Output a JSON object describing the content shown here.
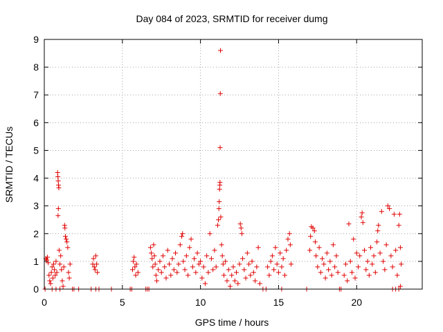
{
  "chart_data": {
    "type": "scatter",
    "title": "Day 084 of 2023, SRMTID for receiver dumg",
    "xlabel": "GPS time / hours",
    "ylabel": "SRMTID / TECUs",
    "xlim": [
      0,
      24.2
    ],
    "ylim": [
      0,
      9
    ],
    "xticks": [
      0,
      5,
      10,
      15,
      20
    ],
    "xtick_labels": [
      "0",
      "5",
      "10",
      "15",
      "20"
    ],
    "yticks": [
      0,
      1,
      2,
      3,
      4,
      5,
      6,
      7,
      8,
      9
    ],
    "ytick_labels": [
      "0",
      "1",
      "2",
      "3",
      "4",
      "5",
      "6",
      "7",
      "8",
      "9"
    ],
    "grid": true,
    "marker": "plus",
    "color": "#e00000",
    "series": [
      {
        "name": "SRMTID",
        "points": [
          [
            0.1,
            1.1
          ],
          [
            0.15,
            1.05
          ],
          [
            0.2,
            1.15
          ],
          [
            0.25,
            0.95
          ],
          [
            0.3,
            0.5
          ],
          [
            0.35,
            0.3
          ],
          [
            0.4,
            0.2
          ],
          [
            0.45,
            0.6
          ],
          [
            0.5,
            0.8
          ],
          [
            0.55,
            0.4
          ],
          [
            0.6,
            0.9
          ],
          [
            0.65,
            0.7
          ],
          [
            0.7,
            0.5
          ],
          [
            0.75,
            1.0
          ],
          [
            0.8,
            0.6
          ],
          [
            0.85,
            4.2
          ],
          [
            0.87,
            4.05
          ],
          [
            0.89,
            3.9
          ],
          [
            0.91,
            3.75
          ],
          [
            0.93,
            3.65
          ],
          [
            0.9,
            2.9
          ],
          [
            0.88,
            2.65
          ],
          [
            0.95,
            1.4
          ],
          [
            1.0,
            0.9
          ],
          [
            1.05,
            1.2
          ],
          [
            1.1,
            0.7
          ],
          [
            1.15,
            0.3
          ],
          [
            1.2,
            0.1
          ],
          [
            1.25,
            0.8
          ],
          [
            1.3,
            2.3
          ],
          [
            1.32,
            2.2
          ],
          [
            1.35,
            1.9
          ],
          [
            1.4,
            1.8
          ],
          [
            1.45,
            1.7
          ],
          [
            1.5,
            1.5
          ],
          [
            1.55,
            0.6
          ],
          [
            1.6,
            0.4
          ],
          [
            1.65,
            0.9
          ],
          [
            0.05,
            0.0
          ],
          [
            0.5,
            0.0
          ],
          [
            0.75,
            0.0
          ],
          [
            1.0,
            0.0
          ],
          [
            1.8,
            0.0
          ],
          [
            1.9,
            0.0
          ],
          [
            2.2,
            0.0
          ],
          [
            3.0,
            0.0
          ],
          [
            3.1,
            0.9
          ],
          [
            3.15,
            1.1
          ],
          [
            3.2,
            0.8
          ],
          [
            3.25,
            0.7
          ],
          [
            3.3,
            1.2
          ],
          [
            3.35,
            0.9
          ],
          [
            3.4,
            0.6
          ],
          [
            3.3,
            0.0
          ],
          [
            3.5,
            0.0
          ],
          [
            4.3,
            0.0
          ],
          [
            5.5,
            0.0
          ],
          [
            5.6,
            0.0
          ],
          [
            5.65,
            0.7
          ],
          [
            5.7,
            1.0
          ],
          [
            5.75,
            1.15
          ],
          [
            5.8,
            0.8
          ],
          [
            5.85,
            0.5
          ],
          [
            5.9,
            0.9
          ],
          [
            6.0,
            0.6
          ],
          [
            6.5,
            0.0
          ],
          [
            6.6,
            0.0
          ],
          [
            6.7,
            0.0
          ],
          [
            6.8,
            1.5
          ],
          [
            6.85,
            1.3
          ],
          [
            6.9,
            1.1
          ],
          [
            6.95,
            0.8
          ],
          [
            7.0,
            1.6
          ],
          [
            7.05,
            1.2
          ],
          [
            7.1,
            0.9
          ],
          [
            7.15,
            0.5
          ],
          [
            7.2,
            0.3
          ],
          [
            7.3,
            0.7
          ],
          [
            7.4,
            1.0
          ],
          [
            7.5,
            0.6
          ],
          [
            7.6,
            1.2
          ],
          [
            7.7,
            0.8
          ],
          [
            7.8,
            0.4
          ],
          [
            7.9,
            1.4
          ],
          [
            8.0,
            0.9
          ],
          [
            8.1,
            0.5
          ],
          [
            8.2,
            1.1
          ],
          [
            8.3,
            0.7
          ],
          [
            8.4,
            1.3
          ],
          [
            8.5,
            0.6
          ],
          [
            8.6,
            0.9
          ],
          [
            8.7,
            1.6
          ],
          [
            8.8,
            1.9
          ],
          [
            8.85,
            2.0
          ],
          [
            8.9,
            1.0
          ],
          [
            9.0,
            0.7
          ],
          [
            9.1,
            1.2
          ],
          [
            9.2,
            0.5
          ],
          [
            9.3,
            1.5
          ],
          [
            9.4,
            1.8
          ],
          [
            9.5,
            0.8
          ],
          [
            9.6,
            1.1
          ],
          [
            9.7,
            0.6
          ],
          [
            9.8,
            1.3
          ],
          [
            9.9,
            0.9
          ],
          [
            10.0,
            1.0
          ],
          [
            10.1,
            0.4
          ],
          [
            10.2,
            0.8
          ],
          [
            10.3,
            0.2
          ],
          [
            10.4,
            1.2
          ],
          [
            10.5,
            0.6
          ],
          [
            10.6,
            2.0
          ],
          [
            10.7,
            1.1
          ],
          [
            10.8,
            0.7
          ],
          [
            10.9,
            1.4
          ],
          [
            11.0,
            0.8
          ],
          [
            11.1,
            2.3
          ],
          [
            11.15,
            2.5
          ],
          [
            11.18,
            2.9
          ],
          [
            11.2,
            3.15
          ],
          [
            11.22,
            3.6
          ],
          [
            11.24,
            3.75
          ],
          [
            11.25,
            3.85
          ],
          [
            11.26,
            5.1
          ],
          [
            11.27,
            7.05
          ],
          [
            11.28,
            8.6
          ],
          [
            11.3,
            2.6
          ],
          [
            11.35,
            1.6
          ],
          [
            11.4,
            1.2
          ],
          [
            11.45,
            0.9
          ],
          [
            11.5,
            0.5
          ],
          [
            11.6,
            1.0
          ],
          [
            11.7,
            0.3
          ],
          [
            11.8,
            0.7
          ],
          [
            11.9,
            0.1
          ],
          [
            12.0,
            0.5
          ],
          [
            12.1,
            0.8
          ],
          [
            12.2,
            0.3
          ],
          [
            12.3,
            0.6
          ],
          [
            12.4,
            0.2
          ],
          [
            12.5,
            0.9
          ],
          [
            12.55,
            2.35
          ],
          [
            12.6,
            2.2
          ],
          [
            12.65,
            2.0
          ],
          [
            12.7,
            1.1
          ],
          [
            12.8,
            0.7
          ],
          [
            12.9,
            0.4
          ],
          [
            13.0,
            1.3
          ],
          [
            13.1,
            0.9
          ],
          [
            13.2,
            0.5
          ],
          [
            13.3,
            1.0
          ],
          [
            13.4,
            0.6
          ],
          [
            13.5,
            0.3
          ],
          [
            13.6,
            0.8
          ],
          [
            13.7,
            1.5
          ],
          [
            13.8,
            0.2
          ],
          [
            14.0,
            0.0
          ],
          [
            14.2,
            0.0
          ],
          [
            14.3,
            0.8
          ],
          [
            14.4,
            0.5
          ],
          [
            14.5,
            1.0
          ],
          [
            14.6,
            1.2
          ],
          [
            14.7,
            0.7
          ],
          [
            14.8,
            1.5
          ],
          [
            14.9,
            0.9
          ],
          [
            15.0,
            0.6
          ],
          [
            15.1,
            1.3
          ],
          [
            15.2,
            0.8
          ],
          [
            15.3,
            1.1
          ],
          [
            15.4,
            0.5
          ],
          [
            15.5,
            1.4
          ],
          [
            15.6,
            1.8
          ],
          [
            15.7,
            2.0
          ],
          [
            15.75,
            1.6
          ],
          [
            15.8,
            0.9
          ],
          [
            15.2,
            0.0
          ],
          [
            16.8,
            0.0
          ],
          [
            17.0,
            1.4
          ],
          [
            17.05,
            1.9
          ],
          [
            17.1,
            2.25
          ],
          [
            17.2,
            2.2
          ],
          [
            17.3,
            2.1
          ],
          [
            17.35,
            1.7
          ],
          [
            17.4,
            1.2
          ],
          [
            17.5,
            0.8
          ],
          [
            17.6,
            1.5
          ],
          [
            17.7,
            0.6
          ],
          [
            17.8,
            1.1
          ],
          [
            17.9,
            0.9
          ],
          [
            18.0,
            0.4
          ],
          [
            18.1,
            1.3
          ],
          [
            18.2,
            0.7
          ],
          [
            18.3,
            1.0
          ],
          [
            18.4,
            0.5
          ],
          [
            18.5,
            1.6
          ],
          [
            18.6,
            0.8
          ],
          [
            18.7,
            1.2
          ],
          [
            18.8,
            0.6
          ],
          [
            18.9,
            0.0
          ],
          [
            19.0,
            0.0
          ],
          [
            19.2,
            0.5
          ],
          [
            19.3,
            0.9
          ],
          [
            19.4,
            0.3
          ],
          [
            19.5,
            2.35
          ],
          [
            19.6,
            1.0
          ],
          [
            19.7,
            0.6
          ],
          [
            19.8,
            1.8
          ],
          [
            19.9,
            0.4
          ],
          [
            20.0,
            1.3
          ],
          [
            20.1,
            0.8
          ],
          [
            20.2,
            1.2
          ],
          [
            20.3,
            2.6
          ],
          [
            20.35,
            2.75
          ],
          [
            20.4,
            2.4
          ],
          [
            20.5,
            1.4
          ],
          [
            20.6,
            0.7
          ],
          [
            20.7,
            1.0
          ],
          [
            20.8,
            0.5
          ],
          [
            20.9,
            1.5
          ],
          [
            21.0,
            0.9
          ],
          [
            21.1,
            1.2
          ],
          [
            21.2,
            0.6
          ],
          [
            21.3,
            1.7
          ],
          [
            21.35,
            2.1
          ],
          [
            21.4,
            2.3
          ],
          [
            21.5,
            1.3
          ],
          [
            21.6,
            2.8
          ],
          [
            21.7,
            1.0
          ],
          [
            21.8,
            0.7
          ],
          [
            21.9,
            1.6
          ],
          [
            22.0,
            3.0
          ],
          [
            22.1,
            2.9
          ],
          [
            22.2,
            1.2
          ],
          [
            22.3,
            0.8
          ],
          [
            22.4,
            2.7
          ],
          [
            22.5,
            1.4
          ],
          [
            22.6,
            0.5
          ],
          [
            22.7,
            2.3
          ],
          [
            22.75,
            2.7
          ],
          [
            22.8,
            1.5
          ],
          [
            22.85,
            0.9
          ],
          [
            22.3,
            0.0
          ],
          [
            22.5,
            0.0
          ],
          [
            22.7,
            0.0
          ],
          [
            22.8,
            0.1
          ]
        ]
      }
    ]
  }
}
